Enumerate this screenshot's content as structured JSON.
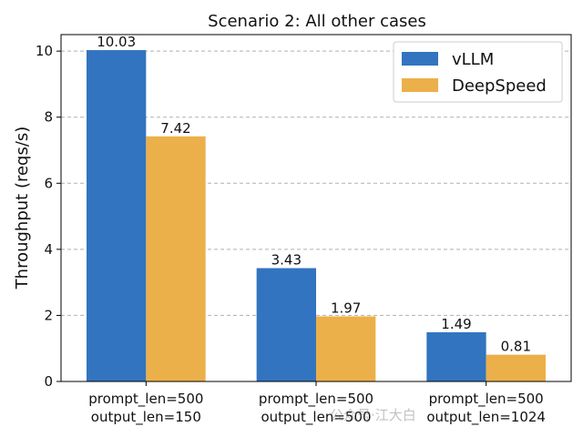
{
  "chart_data": {
    "type": "bar",
    "title": "Scenario 2: All other cases",
    "ylabel": "Throughput (reqs/s)",
    "xlabel": "",
    "categories": [
      [
        "prompt_len=500",
        "output_len=150"
      ],
      [
        "prompt_len=500",
        "output_len=500"
      ],
      [
        "prompt_len=500",
        "output_len=1024"
      ]
    ],
    "series": [
      {
        "name": "vLLM",
        "values": [
          10.03,
          3.43,
          1.49
        ],
        "labels": [
          "10.03",
          "3.43",
          "1.49"
        ],
        "color": "#3274bf"
      },
      {
        "name": "DeepSpeed",
        "values": [
          7.42,
          1.97,
          0.81
        ],
        "labels": [
          "7.42",
          "1.97",
          "0.81"
        ],
        "color": "#ecb04a"
      }
    ],
    "ylim": [
      0,
      10.5
    ],
    "yticks": [
      "0",
      "2",
      "4",
      "6",
      "8",
      "10"
    ],
    "grid": "horizontal dashed",
    "legend_position": "top-right"
  },
  "watermark": "公众号·江大白"
}
